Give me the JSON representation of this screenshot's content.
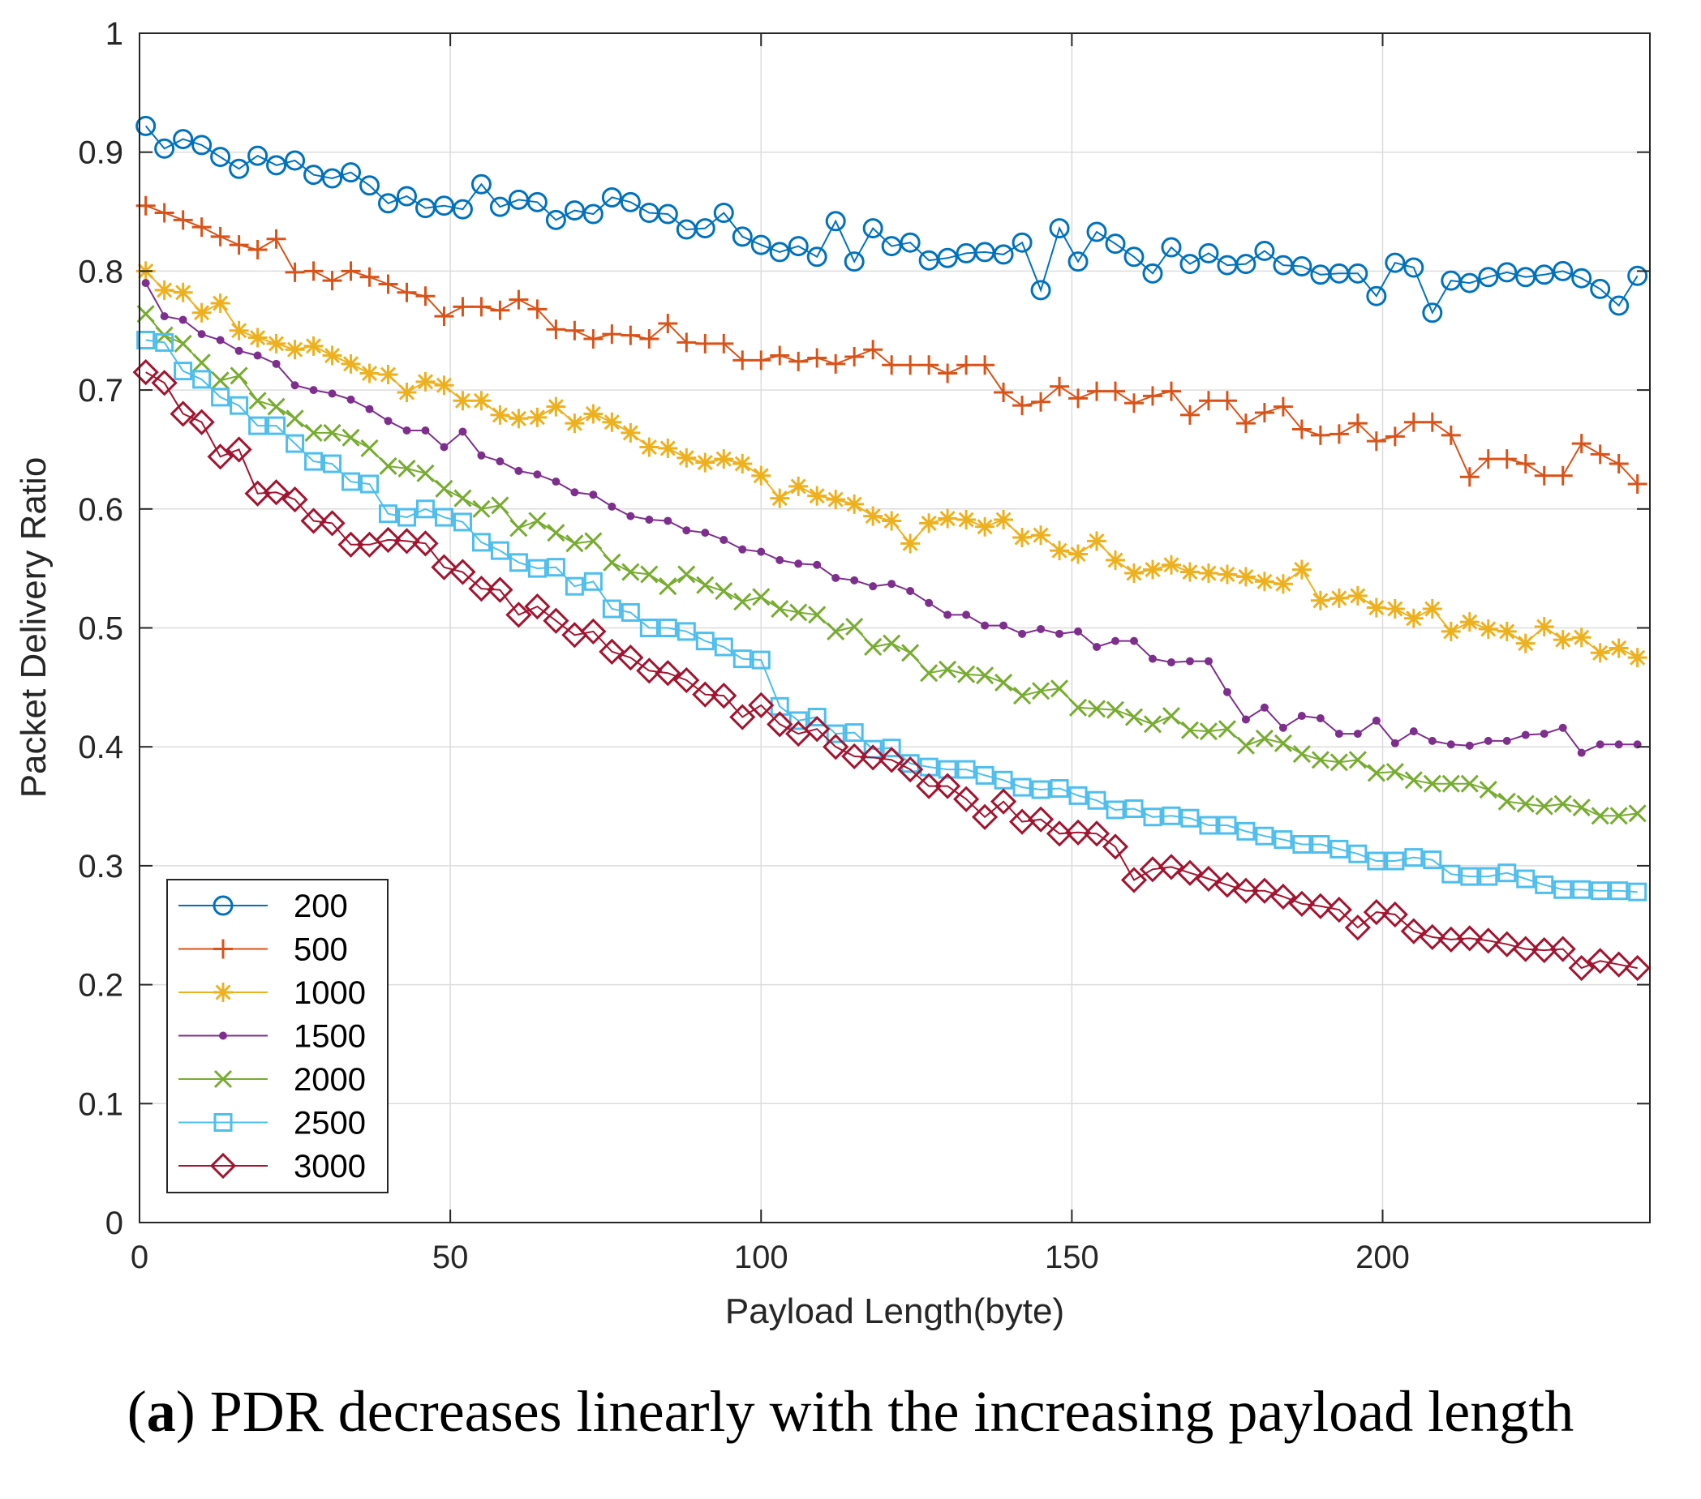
{
  "chart_data": {
    "type": "line",
    "title": "",
    "xlabel": "Payload Length(byte)",
    "ylabel": "Packet Delivery Ratio",
    "xlim": [
      0,
      243
    ],
    "ylim": [
      0,
      1
    ],
    "xticks": [
      0,
      50,
      100,
      150,
      200
    ],
    "yticks": [
      0,
      0.1,
      0.2,
      0.3,
      0.4,
      0.5,
      0.6,
      0.7,
      0.8,
      0.9,
      1
    ],
    "ytick_labels": [
      "0",
      "0.1",
      "0.2",
      "0.3",
      "0.4",
      "0.5",
      "0.6",
      "0.7",
      "0.8",
      "0.9",
      "1"
    ],
    "grid": true,
    "legend_position": "bottom-left",
    "x": [
      1,
      4,
      7,
      10,
      13,
      16,
      19,
      22,
      25,
      28,
      31,
      34,
      37,
      40,
      43,
      46,
      49,
      52,
      55,
      58,
      61,
      64,
      67,
      70,
      73,
      76,
      79,
      82,
      85,
      88,
      91,
      94,
      97,
      100,
      103,
      106,
      109,
      112,
      115,
      118,
      121,
      124,
      127,
      130,
      133,
      136,
      139,
      142,
      145,
      148,
      151,
      154,
      157,
      160,
      163,
      166,
      169,
      172,
      175,
      178,
      181,
      184,
      187,
      190,
      193,
      196,
      199,
      202,
      205,
      208,
      211,
      214,
      217,
      220,
      223,
      226,
      229,
      232,
      235,
      238,
      241
    ],
    "series": [
      {
        "name": "200",
        "color": "#0072BD",
        "marker": "circle",
        "values": [
          0.922,
          0.903,
          0.911,
          0.906,
          0.896,
          0.886,
          0.897,
          0.889,
          0.893,
          0.881,
          0.878,
          0.883,
          0.872,
          0.857,
          0.863,
          0.853,
          0.855,
          0.852,
          0.873,
          0.854,
          0.86,
          0.858,
          0.843,
          0.851,
          0.848,
          0.862,
          0.858,
          0.849,
          0.848,
          0.835,
          0.836,
          0.849,
          0.829,
          0.822,
          0.816,
          0.821,
          0.812,
          0.842,
          0.808,
          0.836,
          0.821,
          0.824,
          0.809,
          0.811,
          0.815,
          0.816,
          0.814,
          0.824,
          0.784,
          0.836,
          0.808,
          0.833,
          0.823,
          0.812,
          0.798,
          0.82,
          0.806,
          0.815,
          0.805,
          0.806,
          0.817,
          0.805,
          0.804,
          0.797,
          0.798,
          0.798,
          0.779,
          0.807,
          0.803,
          0.765,
          0.792,
          0.79,
          0.795,
          0.799,
          0.795,
          0.797,
          0.8,
          0.794,
          0.785,
          0.771,
          0.796
        ]
      },
      {
        "name": "500",
        "color": "#D95319",
        "marker": "plus",
        "values": [
          0.855,
          0.849,
          0.843,
          0.837,
          0.829,
          0.822,
          0.818,
          0.827,
          0.799,
          0.8,
          0.792,
          0.8,
          0.795,
          0.789,
          0.782,
          0.779,
          0.762,
          0.77,
          0.77,
          0.767,
          0.776,
          0.768,
          0.751,
          0.75,
          0.743,
          0.747,
          0.746,
          0.743,
          0.756,
          0.74,
          0.739,
          0.739,
          0.725,
          0.725,
          0.729,
          0.724,
          0.727,
          0.722,
          0.728,
          0.734,
          0.721,
          0.721,
          0.721,
          0.714,
          0.721,
          0.721,
          0.698,
          0.687,
          0.69,
          0.703,
          0.693,
          0.699,
          0.699,
          0.689,
          0.695,
          0.699,
          0.679,
          0.691,
          0.691,
          0.672,
          0.681,
          0.686,
          0.667,
          0.662,
          0.663,
          0.672,
          0.657,
          0.661,
          0.673,
          0.673,
          0.662,
          0.627,
          0.642,
          0.642,
          0.638,
          0.628,
          0.628,
          0.655,
          0.646,
          0.638,
          0.621
        ]
      },
      {
        "name": "1000",
        "color": "#EDB120",
        "marker": "asterisk",
        "values": [
          0.8,
          0.784,
          0.782,
          0.765,
          0.773,
          0.75,
          0.744,
          0.739,
          0.734,
          0.737,
          0.729,
          0.722,
          0.714,
          0.713,
          0.698,
          0.707,
          0.704,
          0.691,
          0.691,
          0.679,
          0.676,
          0.677,
          0.686,
          0.672,
          0.68,
          0.673,
          0.664,
          0.652,
          0.651,
          0.643,
          0.639,
          0.642,
          0.638,
          0.628,
          0.609,
          0.619,
          0.611,
          0.608,
          0.604,
          0.594,
          0.59,
          0.571,
          0.588,
          0.592,
          0.591,
          0.585,
          0.591,
          0.576,
          0.578,
          0.565,
          0.562,
          0.573,
          0.557,
          0.546,
          0.549,
          0.553,
          0.547,
          0.546,
          0.545,
          0.543,
          0.539,
          0.537,
          0.549,
          0.523,
          0.525,
          0.527,
          0.517,
          0.516,
          0.508,
          0.516,
          0.497,
          0.505,
          0.499,
          0.497,
          0.487,
          0.501,
          0.49,
          0.492,
          0.479,
          0.483,
          0.475
        ]
      },
      {
        "name": "1500",
        "color": "#7E2F8E",
        "marker": "point",
        "values": [
          0.79,
          0.762,
          0.759,
          0.747,
          0.742,
          0.733,
          0.729,
          0.722,
          0.704,
          0.7,
          0.697,
          0.692,
          0.684,
          0.674,
          0.666,
          0.666,
          0.652,
          0.665,
          0.645,
          0.64,
          0.632,
          0.629,
          0.623,
          0.614,
          0.612,
          0.602,
          0.594,
          0.591,
          0.59,
          0.582,
          0.58,
          0.574,
          0.566,
          0.564,
          0.557,
          0.554,
          0.553,
          0.542,
          0.54,
          0.535,
          0.537,
          0.531,
          0.521,
          0.511,
          0.511,
          0.502,
          0.502,
          0.495,
          0.499,
          0.495,
          0.497,
          0.484,
          0.489,
          0.489,
          0.474,
          0.471,
          0.472,
          0.472,
          0.446,
          0.423,
          0.433,
          0.416,
          0.426,
          0.424,
          0.411,
          0.411,
          0.422,
          0.403,
          0.413,
          0.405,
          0.402,
          0.401,
          0.405,
          0.405,
          0.41,
          0.411,
          0.416,
          0.395,
          0.402,
          0.402,
          0.402
        ]
      },
      {
        "name": "2000",
        "color": "#77AC30",
        "marker": "x",
        "values": [
          0.764,
          0.746,
          0.739,
          0.723,
          0.708,
          0.712,
          0.691,
          0.686,
          0.676,
          0.664,
          0.664,
          0.66,
          0.651,
          0.636,
          0.634,
          0.63,
          0.617,
          0.609,
          0.6,
          0.603,
          0.584,
          0.59,
          0.58,
          0.571,
          0.573,
          0.555,
          0.547,
          0.545,
          0.535,
          0.545,
          0.536,
          0.531,
          0.522,
          0.526,
          0.516,
          0.513,
          0.511,
          0.497,
          0.501,
          0.484,
          0.487,
          0.479,
          0.462,
          0.465,
          0.461,
          0.46,
          0.454,
          0.443,
          0.447,
          0.449,
          0.433,
          0.432,
          0.431,
          0.425,
          0.419,
          0.426,
          0.414,
          0.413,
          0.415,
          0.401,
          0.407,
          0.403,
          0.394,
          0.389,
          0.387,
          0.389,
          0.378,
          0.379,
          0.372,
          0.369,
          0.369,
          0.369,
          0.364,
          0.354,
          0.352,
          0.35,
          0.352,
          0.349,
          0.342,
          0.342,
          0.344
        ]
      },
      {
        "name": "2500",
        "color": "#4DBEEE",
        "marker": "square",
        "values": [
          0.742,
          0.74,
          0.716,
          0.709,
          0.694,
          0.687,
          0.67,
          0.67,
          0.655,
          0.64,
          0.638,
          0.623,
          0.621,
          0.596,
          0.593,
          0.6,
          0.593,
          0.589,
          0.572,
          0.565,
          0.555,
          0.55,
          0.551,
          0.535,
          0.539,
          0.516,
          0.513,
          0.5,
          0.5,
          0.497,
          0.489,
          0.484,
          0.474,
          0.473,
          0.434,
          0.422,
          0.425,
          0.411,
          0.412,
          0.398,
          0.399,
          0.386,
          0.383,
          0.381,
          0.381,
          0.376,
          0.372,
          0.366,
          0.364,
          0.365,
          0.359,
          0.355,
          0.347,
          0.348,
          0.341,
          0.342,
          0.34,
          0.334,
          0.334,
          0.329,
          0.325,
          0.322,
          0.318,
          0.318,
          0.314,
          0.31,
          0.304,
          0.304,
          0.307,
          0.305,
          0.293,
          0.291,
          0.291,
          0.294,
          0.289,
          0.284,
          0.28,
          0.28,
          0.279,
          0.279,
          0.278
        ]
      },
      {
        "name": "3000",
        "color": "#A2142F",
        "marker": "diamond",
        "values": [
          0.715,
          0.706,
          0.68,
          0.673,
          0.644,
          0.65,
          0.613,
          0.614,
          0.608,
          0.59,
          0.588,
          0.57,
          0.57,
          0.574,
          0.573,
          0.571,
          0.551,
          0.547,
          0.533,
          0.532,
          0.511,
          0.518,
          0.506,
          0.494,
          0.497,
          0.48,
          0.475,
          0.464,
          0.462,
          0.456,
          0.444,
          0.443,
          0.425,
          0.435,
          0.419,
          0.411,
          0.415,
          0.4,
          0.392,
          0.391,
          0.389,
          0.381,
          0.367,
          0.367,
          0.356,
          0.341,
          0.354,
          0.337,
          0.339,
          0.327,
          0.328,
          0.327,
          0.316,
          0.288,
          0.297,
          0.299,
          0.294,
          0.289,
          0.284,
          0.279,
          0.279,
          0.274,
          0.268,
          0.266,
          0.263,
          0.248,
          0.261,
          0.259,
          0.245,
          0.24,
          0.238,
          0.239,
          0.237,
          0.234,
          0.23,
          0.229,
          0.23,
          0.214,
          0.22,
          0.217,
          0.214
        ]
      }
    ]
  },
  "caption": {
    "label": "a",
    "text": "PDR decreases linearly with the increasing payload length"
  }
}
